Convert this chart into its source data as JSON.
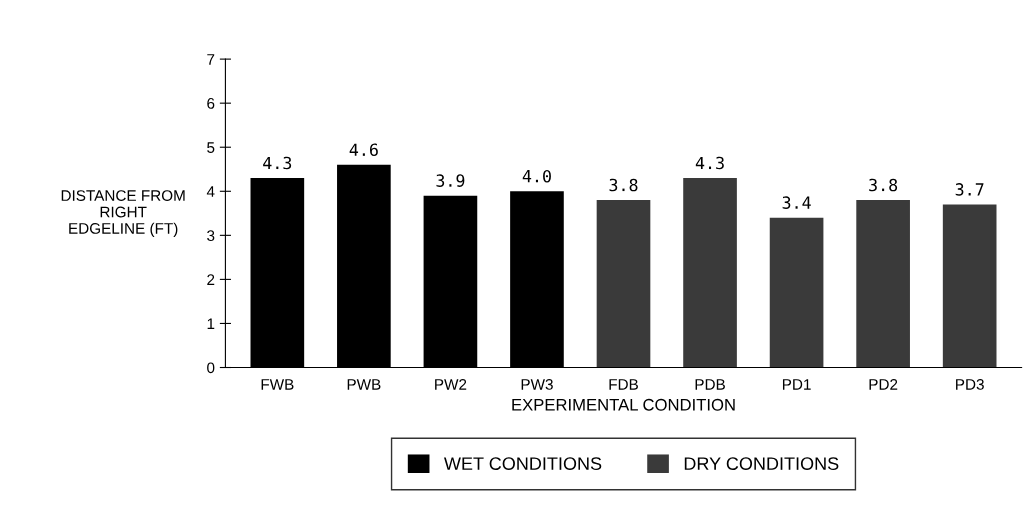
{
  "chart_data": {
    "type": "bar",
    "categories": [
      "FWB",
      "PWB",
      "PW2",
      "PW3",
      "FDB",
      "PDB",
      "PD1",
      "PD2",
      "PD3"
    ],
    "series": [
      {
        "name": "WET CONDITIONS",
        "color": "#000000",
        "values": [
          4.3,
          4.6,
          3.9,
          4.0,
          null,
          null,
          null,
          null,
          null
        ],
        "value_labels": [
          "4.3",
          "4.6",
          "3.9",
          "4.0",
          null,
          null,
          null,
          null,
          null
        ]
      },
      {
        "name": "DRY CONDITIONS",
        "color": "#3a3a3a",
        "values": [
          null,
          null,
          null,
          null,
          3.8,
          4.3,
          3.4,
          3.8,
          3.7
        ],
        "value_labels": [
          null,
          null,
          null,
          null,
          "3.8",
          "4.3",
          "3.4",
          "3.8",
          "3.7"
        ]
      }
    ],
    "xlabel": "EXPERIMENTAL CONDITION",
    "ylabel": "DISTANCE FROM\nRIGHT\nEDGELINE (FT)",
    "ylim": [
      0,
      7
    ],
    "yticks": [
      0,
      1,
      2,
      3,
      4,
      5,
      6,
      7
    ],
    "grid": false,
    "legend": "bottom"
  }
}
